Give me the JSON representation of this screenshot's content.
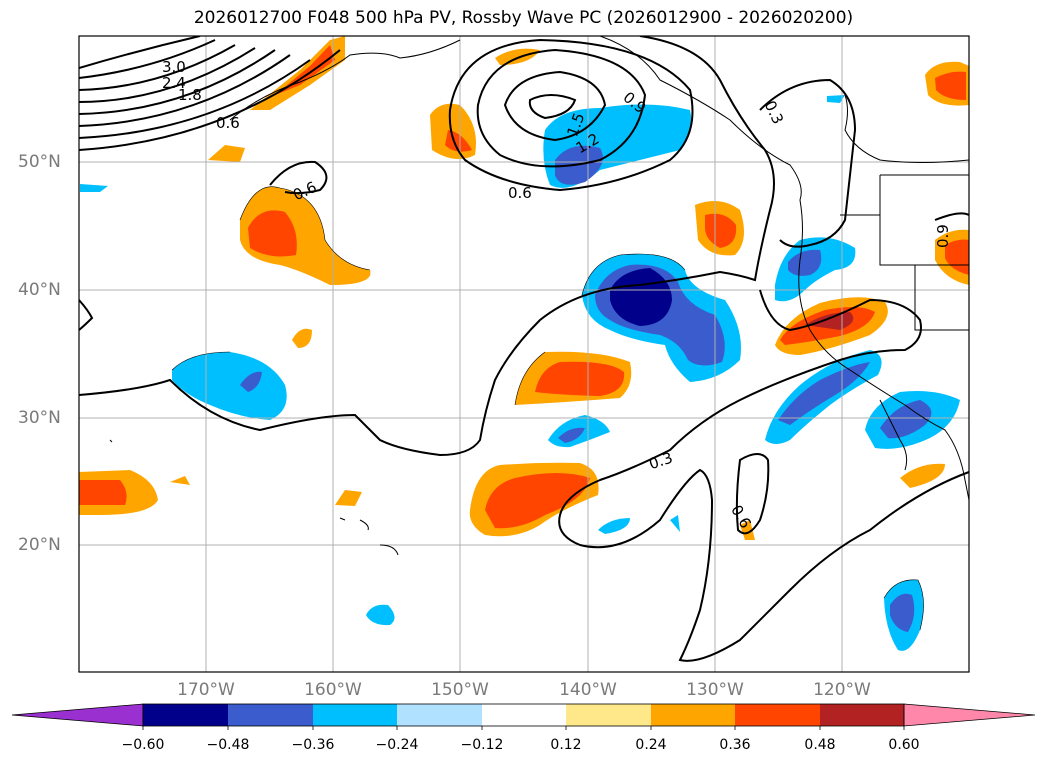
{
  "title": "2026012700 F048 500 hPa PV, Rossby Wave PC (2026012900 - 2026020200)",
  "latitude_labels": [
    "50°N",
    "40°N",
    "30°N",
    "20°N"
  ],
  "longitude_labels": [
    "170°W",
    "160°W",
    "150°W",
    "140°W",
    "130°W",
    "120°W"
  ],
  "colorbar": {
    "ticks": [
      "−0.60",
      "−0.48",
      "−0.36",
      "−0.24",
      "−0.12",
      "0.12",
      "0.24",
      "0.36",
      "0.48",
      "0.60"
    ],
    "colors": [
      "#9b30d0",
      "#00008b",
      "#3a5ccc",
      "#00bfff",
      "#b0e2ff",
      "#ffffff",
      "#ffe88a",
      "#ffa500",
      "#ff4500",
      "#b22222",
      "#ff88aa"
    ]
  },
  "contour_labels": [
    "3.0",
    "2.4",
    "1.8",
    "1.5",
    "1.2",
    "0.9",
    "0.6",
    "0.3",
    "0.6",
    "0.3",
    "0.6",
    "0.9",
    "0.6"
  ],
  "colors": {
    "positive_light": "#ffe88a",
    "positive_mid": "#ffa500",
    "positive_strong": "#ff4500",
    "positive_max": "#b22222",
    "negative_light": "#b0e2ff",
    "negative_mid": "#00bfff",
    "negative_strong": "#3a5ccc",
    "negative_max": "#00008b"
  }
}
